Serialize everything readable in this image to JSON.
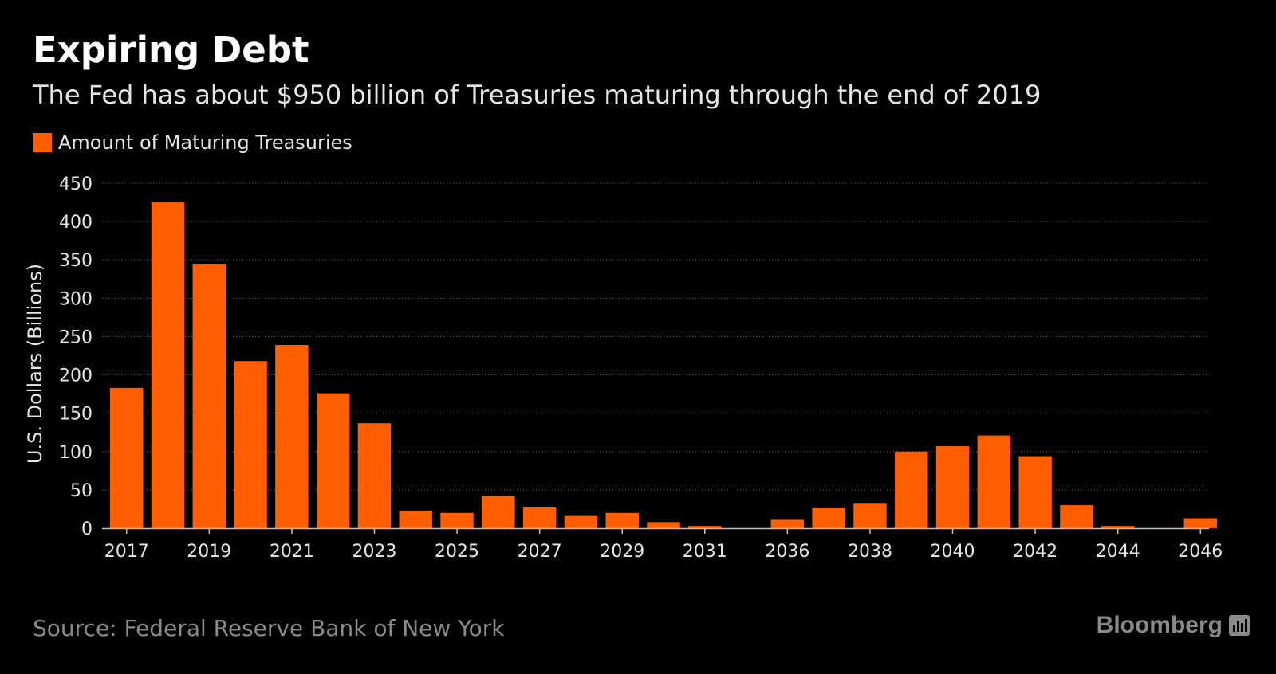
{
  "header": {
    "title": "Expiring Debt",
    "subtitle": "The Fed has about $950 billion of Treasuries maturing through the end of 2019"
  },
  "legend": {
    "label": "Amount of Maturing Treasuries"
  },
  "footer": {
    "source": "Source: Federal Reserve Bank of New York",
    "brand": "Bloomberg",
    "brand_icon": "bar-chart-icon"
  },
  "colors": {
    "background": "#000000",
    "bar": "#ff5f00",
    "gridline": "#6a6a6a",
    "text": "#e6e6e6",
    "muted": "#8a8a8a"
  },
  "chart_data": {
    "type": "bar",
    "title": "Expiring Debt",
    "subtitle": "The Fed has about $950 billion of Treasuries maturing through the end of 2019",
    "xlabel": "",
    "ylabel": "U.S. Dollars (Billions)",
    "ylim": [
      0,
      450
    ],
    "yticks": [
      0,
      50,
      100,
      150,
      200,
      250,
      300,
      350,
      400,
      450
    ],
    "grid": true,
    "legend_position": "top-left",
    "categories": [
      "2017",
      "2018",
      "2019",
      "2020",
      "2021",
      "2022",
      "2023",
      "2024",
      "2025",
      "2026",
      "2027",
      "2028",
      "2029",
      "2030",
      "2031",
      "2035",
      "2036",
      "2037",
      "2038",
      "2039",
      "2040",
      "2041",
      "2042",
      "2043",
      "2044",
      "2045",
      "2046"
    ],
    "tick_labels": [
      "2017",
      "2019",
      "2021",
      "2023",
      "2025",
      "2027",
      "2029",
      "2031",
      "2036",
      "2038",
      "2040",
      "2042",
      "2044",
      "2046"
    ],
    "series": [
      {
        "name": "Amount of Maturing Treasuries",
        "values": [
          183,
          425,
          345,
          218,
          239,
          176,
          137,
          23,
          20,
          42,
          27,
          16,
          20,
          8,
          3,
          0,
          11,
          26,
          33,
          100,
          107,
          121,
          94,
          30,
          3,
          0,
          13
        ]
      }
    ]
  }
}
